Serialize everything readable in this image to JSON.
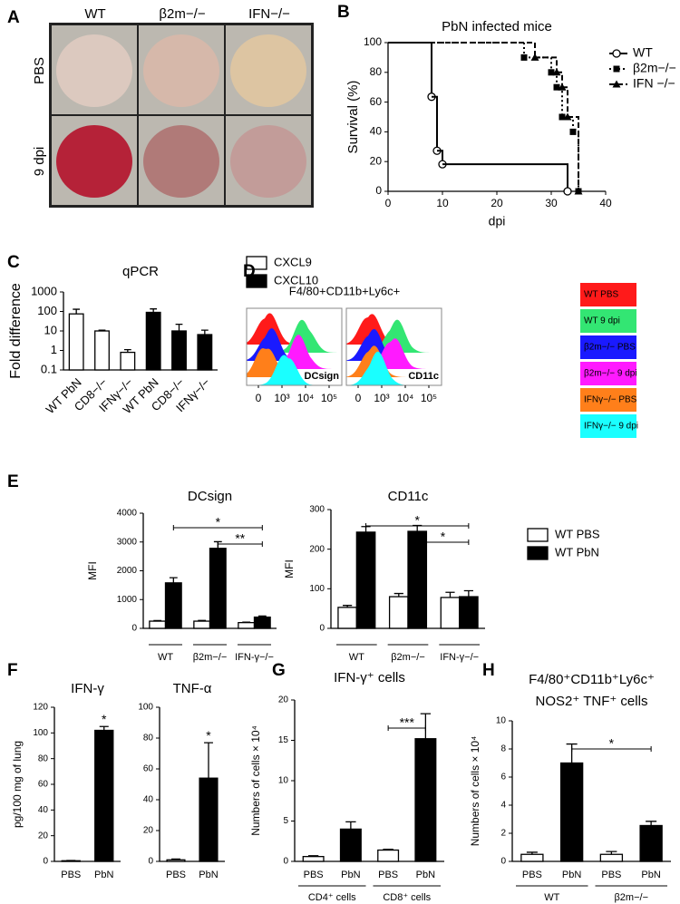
{
  "chart_data": [
    {
      "type": "photo-grid",
      "panel": "A",
      "columns": [
        "WT",
        "β2m−/−",
        "IFN−/−"
      ],
      "rows": [
        "PBS",
        "9 dpi"
      ],
      "colors": [
        [
          "#dcc9bf",
          "#d6b8aa",
          "#ddc5a2"
        ],
        [
          "#b52238",
          "#b07a78",
          "#c29c99"
        ]
      ]
    },
    {
      "type": "survival",
      "panel": "B",
      "title": "PbN infected mice",
      "xlabel": "dpi",
      "ylabel": "Survival (%)",
      "xlim": [
        0,
        40
      ],
      "xticks": [
        0,
        10,
        20,
        30,
        40
      ],
      "ylim": [
        0,
        100
      ],
      "yticks": [
        0,
        20,
        40,
        60,
        80,
        100
      ],
      "legend": "top-right",
      "series": [
        {
          "name": "WT",
          "color": "#000000",
          "dash": "solid",
          "marker": "open-circle",
          "x": [
            0,
            8,
            9,
            10,
            33
          ],
          "values": [
            100,
            63.6,
            27.3,
            18.2,
            0
          ]
        },
        {
          "name": "β2m−/−",
          "color": "#000000",
          "dash": "dotted",
          "marker": "square",
          "x": [
            0,
            25,
            30,
            31,
            32,
            34,
            35
          ],
          "values": [
            100,
            90,
            80,
            70,
            50,
            40,
            0
          ]
        },
        {
          "name": "IFN −/−",
          "color": "#000000",
          "dash": "dashed",
          "marker": "triangle",
          "x": [
            0,
            27,
            31,
            32,
            33,
            35
          ],
          "values": [
            100,
            90,
            80,
            70,
            50,
            0
          ]
        }
      ]
    },
    {
      "type": "bar",
      "panel": "C",
      "title": "qPCR",
      "ylabel": "Fold difference",
      "log": true,
      "ylim": [
        0.1,
        1000
      ],
      "yticks": [
        0.1,
        1,
        10,
        100,
        1000
      ],
      "categories": [
        "WT PbN",
        "CD8−/−",
        "IFNγ−/−",
        "WT PbN",
        "CD8−/−",
        "IFNγ−/−"
      ],
      "rotate_labels": true,
      "legend": "right",
      "series": [
        {
          "name": "CXCL9",
          "color": "#ffffff",
          "values": [
            75,
            10,
            0.8,
            null,
            null,
            null
          ],
          "errors": [
            55,
            1,
            0.3,
            null,
            null,
            null
          ]
        },
        {
          "name": "CXCL10",
          "color": "#000000",
          "values": [
            null,
            null,
            null,
            90,
            10,
            6.5
          ],
          "errors": [
            null,
            null,
            null,
            45,
            12,
            4.5
          ]
        }
      ]
    },
    {
      "type": "flow-histogram",
      "panel": "D",
      "title": "F4/80+CD11b+Ly6c+",
      "xticks": [
        {
          "value": 0,
          "label": "0"
        },
        {
          "value": 1000,
          "label": "10³"
        },
        {
          "value": 10000,
          "label": "10⁴"
        },
        {
          "value": 100000,
          "label": "10⁵"
        }
      ],
      "series": [
        {
          "name": "WT PBS",
          "color": "#ff1a1a"
        },
        {
          "name": "WT 9 dpi",
          "color": "#33e673"
        },
        {
          "name": "β2m−/− PBS",
          "color": "#1a1aff"
        },
        {
          "name": "β2m−/− 9 dpi",
          "color": "#ff1aff"
        },
        {
          "name": "IFNγ−/− PBS",
          "color": "#ff7f1a"
        },
        {
          "name": "IFNγ−/− 9 dpi",
          "color": "#1affff"
        }
      ],
      "panels": [
        {
          "label": "DCsign",
          "peaks": [
            400,
            8000,
            500,
            5000,
            300,
            1500
          ]
        },
        {
          "label": "CD11c",
          "peaks": [
            500,
            4000,
            600,
            3000,
            600,
            800
          ]
        }
      ]
    },
    {
      "type": "bar",
      "panel": "E",
      "title": "DCsign",
      "ylabel": "MFI",
      "ylim": [
        0,
        4000
      ],
      "yticks": [
        0,
        1000,
        2000,
        3000,
        4000
      ],
      "categories": [
        "WT",
        "β2m−/−",
        "IFN-γ−/−"
      ],
      "underline": true,
      "series": [
        {
          "color": "#ffffff",
          "values": [
            250,
            250,
            200
          ],
          "errors": [
            20,
            25,
            15
          ]
        },
        {
          "color": "#000000",
          "values": [
            1580,
            2780,
            390
          ],
          "errors": [
            180,
            230,
            40
          ]
        }
      ],
      "significance": [
        {
          "label": "*",
          "between": [
            0,
            2
          ],
          "series": 1
        },
        {
          "label": "**",
          "between": [
            1,
            2
          ],
          "series": 1
        }
      ]
    },
    {
      "type": "bar",
      "title": "CD11c",
      "ylabel": "MFI",
      "ylim": [
        0,
        300
      ],
      "yticks": [
        0,
        100,
        200,
        300
      ],
      "categories": [
        "WT",
        "β2m−/−",
        "IFN-γ−/−"
      ],
      "underline": true,
      "legend": "right",
      "series": [
        {
          "name": "WT PBS",
          "color": "#ffffff",
          "values": [
            53,
            80,
            78
          ],
          "errors": [
            5,
            8,
            13
          ]
        },
        {
          "name": "WT PbN",
          "color": "#000000",
          "values": [
            243,
            245,
            80
          ],
          "errors": [
            14,
            15,
            15
          ]
        }
      ],
      "significance": [
        {
          "label": "*",
          "between": [
            0,
            2
          ],
          "series": 1
        },
        {
          "label": "*",
          "between": [
            1,
            2
          ],
          "series": 1
        }
      ]
    },
    {
      "type": "bar",
      "panel": "F",
      "title": "IFN-γ",
      "ylabel": "pg/100 mg of lung",
      "ylim": [
        0,
        120
      ],
      "yticks": [
        0,
        20,
        40,
        60,
        80,
        100,
        120
      ],
      "categories": [
        "PBS",
        "PbN"
      ],
      "values": [
        0.5,
        102
      ],
      "errors": [
        0.2,
        3
      ],
      "colors": [
        "#ffffff",
        "#000000"
      ],
      "annotations": [
        {
          "text": "*",
          "category": 1
        }
      ]
    },
    {
      "type": "bar",
      "title": "TNF-α",
      "ylim": [
        0,
        100
      ],
      "yticks": [
        0,
        20,
        40,
        60,
        80,
        100
      ],
      "categories": [
        "PBS",
        "PbN"
      ],
      "values": [
        1,
        54
      ],
      "errors": [
        0.5,
        23
      ],
      "colors": [
        "#ffffff",
        "#000000"
      ],
      "annotations": [
        {
          "text": "*",
          "category": 1
        }
      ]
    },
    {
      "type": "bar",
      "panel": "G",
      "title": "IFN-γ⁺ cells",
      "ylabel": "Numbers of cells × 10⁴",
      "ylim": [
        0,
        20
      ],
      "yticks": [
        0,
        5,
        10,
        15,
        20
      ],
      "categories": [
        "PBS",
        "PbN",
        "PBS",
        "PbN"
      ],
      "values": [
        0.6,
        4.0,
        1.4,
        15.2
      ],
      "errors": [
        0.1,
        0.9,
        0.1,
        3.1
      ],
      "colors": [
        "#ffffff",
        "#000000",
        "#ffffff",
        "#000000"
      ],
      "groups": [
        {
          "label": "CD4⁺ cells",
          "span": [
            0,
            1
          ]
        },
        {
          "label": "CD8⁺ cells",
          "span": [
            2,
            3
          ]
        }
      ],
      "significance": [
        {
          "label": "***",
          "between": [
            2,
            3
          ]
        }
      ]
    },
    {
      "type": "bar",
      "panel": "H",
      "title": "F4/80⁺CD11b⁺Ly6c⁺",
      "subtitle": "NOS2⁺ TNF⁺ cells",
      "ylabel": "Numbers of cells × 10⁴",
      "ylim": [
        0,
        10
      ],
      "yticks": [
        0,
        2,
        4,
        6,
        8,
        10
      ],
      "categories": [
        "PBS",
        "PbN",
        "PBS",
        "PbN"
      ],
      "values": [
        0.5,
        7.0,
        0.5,
        2.55
      ],
      "errors": [
        0.15,
        1.35,
        0.2,
        0.3
      ],
      "colors": [
        "#ffffff",
        "#000000",
        "#ffffff",
        "#000000"
      ],
      "groups": [
        {
          "label": "WT",
          "span": [
            0,
            1
          ]
        },
        {
          "label": "β2m−/−",
          "span": [
            2,
            3
          ]
        }
      ],
      "significance": [
        {
          "label": "*",
          "between": [
            1,
            3
          ]
        }
      ]
    }
  ]
}
